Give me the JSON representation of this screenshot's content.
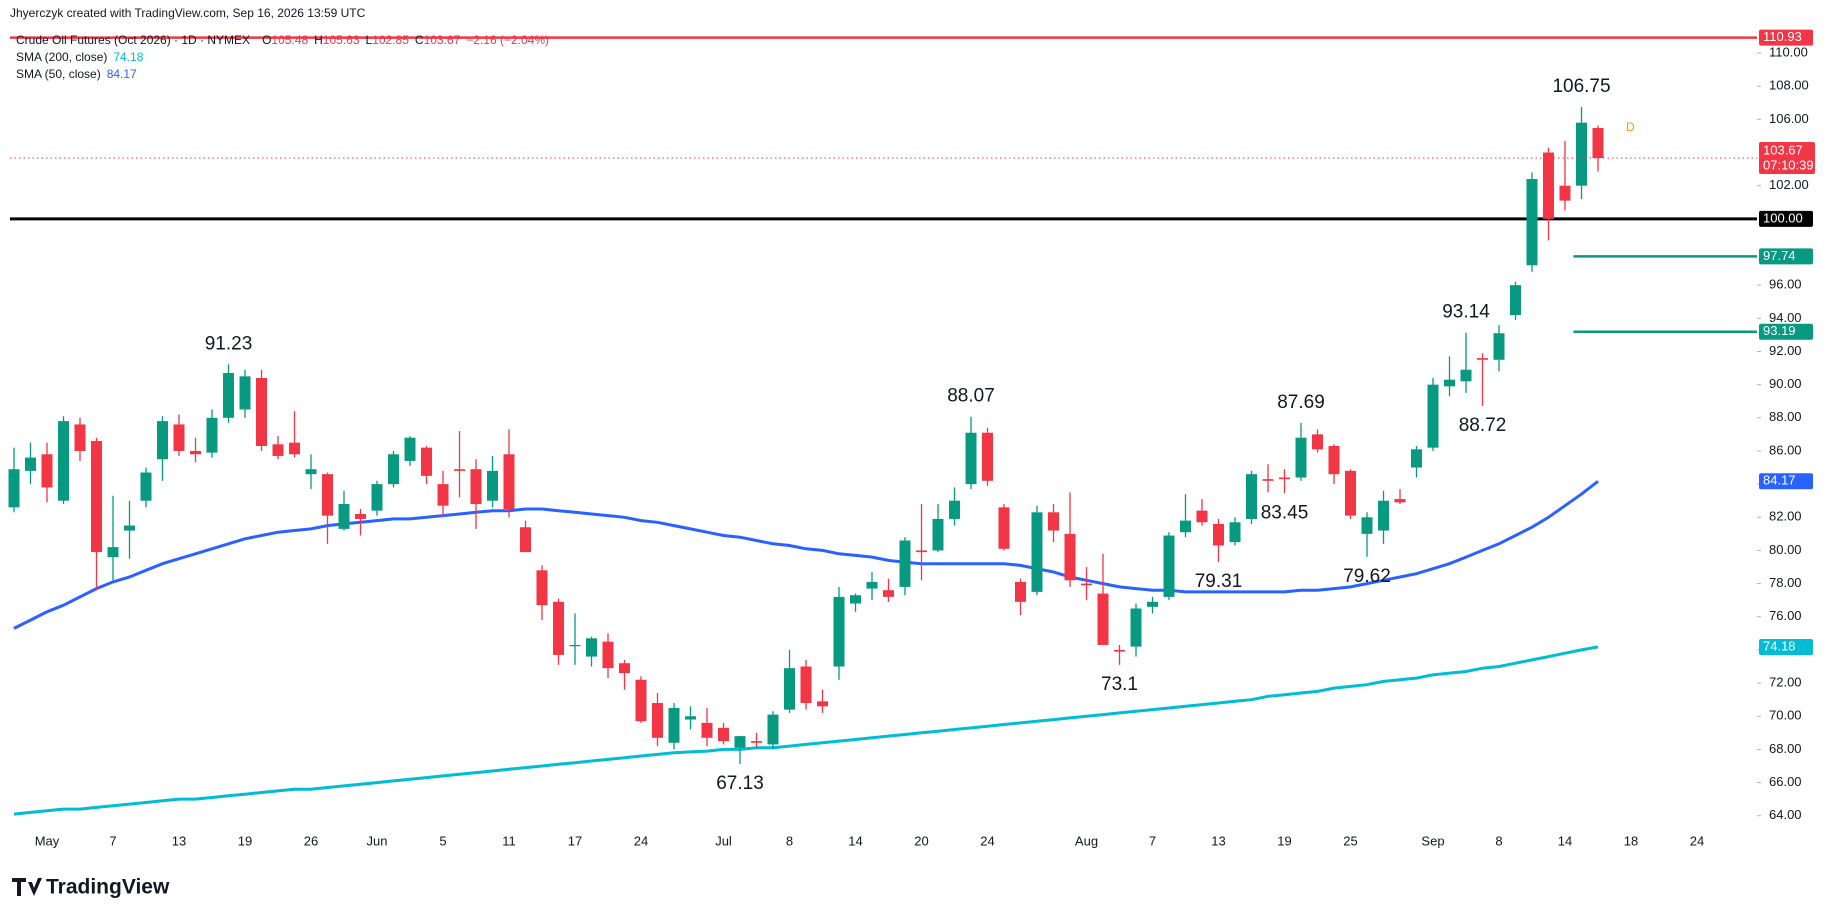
{
  "header": "Jhyerczyk created with TradingView.com, Sep 16, 2026 13:59 UTC",
  "chart_data": {
    "type": "candlestick",
    "symbol": "Crude Oil Futures (Oct 2026) · 1D · NYMEX",
    "ohlc_letters": [
      "O",
      "H",
      "L",
      "C"
    ],
    "change": "−2.16 (−2.04%)",
    "categories": [
      null,
      null,
      "May",
      null,
      null,
      null,
      "7",
      null,
      null,
      null,
      "13",
      null,
      null,
      null,
      "19",
      null,
      null,
      null,
      "26",
      null,
      null,
      null,
      "Jun",
      null,
      null,
      null,
      "5",
      null,
      null,
      null,
      "11",
      null,
      null,
      null,
      "17",
      null,
      null,
      null,
      "24",
      null,
      null,
      null,
      null,
      "Jul",
      null,
      null,
      null,
      "8",
      null,
      null,
      null,
      "14",
      null,
      null,
      null,
      "20",
      null,
      null,
      null,
      "24",
      null,
      null,
      null,
      null,
      null,
      "Aug",
      null,
      null,
      null,
      "7",
      null,
      null,
      null,
      "13",
      null,
      null,
      null,
      "19",
      null,
      null,
      null,
      "25",
      null,
      null,
      null,
      null,
      "Sep",
      null,
      null,
      null,
      "8",
      null,
      null,
      null,
      "14",
      null,
      null,
      null,
      "18",
      null,
      null,
      null,
      "24"
    ],
    "open": [
      82.6,
      84.8,
      85.8,
      83.0,
      87.6,
      86.6,
      79.6,
      81.2,
      83.0,
      85.5,
      87.6,
      86.0,
      85.9,
      88.0,
      88.5,
      90.4,
      86.4,
      86.5,
      84.6,
      84.6,
      81.3,
      82.2,
      82.4,
      84.0,
      85.4,
      86.2,
      84.0,
      84.9,
      84.9,
      83.0,
      85.8,
      81.4,
      78.8,
      76.9,
      74.3,
      73.6,
      74.5,
      73.2,
      72.2,
      70.8,
      68.4,
      69.8,
      69.6,
      69.3,
      68.1,
      68.5,
      68.3,
      70.4,
      73.0,
      70.9,
      73.0,
      76.8,
      77.7,
      77.6,
      77.8,
      80.0,
      80.0,
      81.9,
      84.0,
      87.1,
      82.6,
      78.1,
      77.5,
      82.3,
      81.0,
      78.0,
      77.4,
      74.0,
      74.2,
      76.6,
      77.2,
      81.1,
      82.4,
      81.6,
      80.5,
      81.9,
      84.3,
      84.4,
      84.4,
      87.0,
      86.3,
      84.8,
      81.0,
      81.2,
      83.1,
      85.0,
      86.2,
      89.9,
      90.2,
      91.6,
      91.5,
      94.2,
      97.2,
      104.0,
      102.0,
      102.0,
      105.48,
      null,
      null,
      null,
      null,
      null,
      null
    ],
    "high": [
      86.2,
      86.5,
      86.5,
      88.1,
      88.0,
      86.8,
      83.3,
      83.0,
      85.0,
      88.1,
      88.2,
      86.8,
      88.5,
      91.23,
      90.9,
      90.9,
      86.9,
      88.4,
      85.8,
      84.7,
      83.6,
      82.5,
      84.2,
      86.0,
      86.9,
      86.3,
      84.8,
      87.2,
      85.5,
      85.7,
      87.3,
      81.8,
      79.1,
      77.1,
      76.2,
      74.8,
      75.0,
      73.4,
      72.4,
      71.4,
      70.8,
      70.6,
      70.5,
      69.6,
      68.8,
      69.0,
      70.3,
      74.0,
      73.4,
      71.6,
      77.8,
      77.4,
      78.7,
      78.3,
      80.8,
      82.8,
      82.8,
      83.8,
      88.07,
      87.4,
      82.8,
      78.3,
      82.7,
      82.8,
      83.5,
      79.0,
      79.8,
      74.3,
      76.8,
      77.2,
      81.1,
      83.4,
      83.1,
      81.9,
      82.0,
      84.8,
      85.2,
      84.9,
      87.69,
      87.3,
      86.4,
      84.9,
      82.3,
      83.6,
      83.7,
      86.3,
      90.4,
      91.7,
      93.14,
      91.9,
      93.6,
      96.2,
      102.8,
      104.3,
      104.7,
      106.75,
      105.63,
      null,
      null,
      null,
      null,
      null,
      null
    ],
    "low": [
      82.3,
      84.0,
      82.9,
      82.8,
      85.4,
      77.6,
      78.2,
      79.5,
      82.6,
      84.2,
      85.7,
      85.3,
      85.6,
      87.7,
      88.0,
      86.0,
      85.5,
      85.6,
      83.7,
      80.4,
      81.2,
      80.9,
      82.1,
      83.8,
      85.1,
      84.0,
      82.0,
      83.2,
      81.3,
      82.6,
      82.0,
      79.9,
      75.8,
      73.1,
      73.1,
      73.0,
      72.3,
      71.6,
      69.6,
      68.2,
      68.0,
      69.2,
      68.2,
      68.3,
      67.13,
      68.1,
      68.0,
      70.2,
      70.4,
      70.2,
      72.2,
      76.3,
      77.0,
      76.9,
      77.3,
      78.2,
      79.9,
      81.5,
      83.7,
      83.9,
      80.0,
      76.1,
      77.3,
      80.5,
      77.8,
      77.0,
      74.3,
      73.1,
      73.6,
      76.2,
      77.0,
      80.8,
      81.5,
      79.31,
      80.3,
      81.6,
      83.5,
      83.45,
      84.2,
      85.9,
      84.0,
      81.9,
      79.62,
      80.4,
      82.8,
      84.4,
      86.0,
      89.3,
      89.5,
      88.72,
      90.8,
      93.9,
      96.8,
      98.7,
      100.5,
      101.2,
      102.85,
      null,
      null,
      null,
      null,
      null,
      null
    ],
    "close": [
      84.9,
      85.6,
      83.8,
      87.8,
      86.0,
      79.9,
      80.2,
      81.5,
      84.7,
      87.8,
      86.0,
      85.8,
      88.0,
      90.7,
      90.5,
      86.3,
      85.7,
      85.8,
      84.9,
      82.1,
      82.8,
      81.9,
      84.0,
      85.8,
      86.8,
      84.5,
      82.7,
      84.8,
      82.8,
      84.8,
      82.5,
      79.9,
      76.7,
      73.7,
      74.3,
      74.7,
      72.9,
      72.6,
      69.7,
      68.7,
      70.5,
      70.0,
      68.7,
      68.5,
      68.8,
      68.4,
      70.1,
      72.9,
      70.8,
      70.6,
      77.2,
      77.3,
      78.1,
      77.2,
      80.6,
      79.9,
      81.9,
      83.0,
      87.1,
      84.2,
      80.1,
      76.9,
      82.3,
      81.2,
      78.2,
      77.9,
      74.3,
      73.9,
      76.5,
      76.9,
      80.9,
      81.8,
      81.7,
      80.3,
      81.7,
      84.6,
      84.2,
      84.3,
      86.8,
      86.1,
      84.6,
      82.1,
      82.0,
      83.0,
      82.9,
      86.1,
      90.0,
      90.3,
      90.9,
      91.5,
      93.1,
      96.0,
      102.4,
      100.0,
      101.1,
      105.8,
      103.67,
      null,
      null,
      null,
      null,
      null,
      null
    ],
    "up_color": "#089981",
    "down_color": "#f23645",
    "series": [
      {
        "name": "SMA (200, close)",
        "color": "#00bcd4",
        "values": [
          64.1,
          64.2,
          64.3,
          64.4,
          64.4,
          64.5,
          64.6,
          64.7,
          64.8,
          64.9,
          65.0,
          65.0,
          65.1,
          65.2,
          65.3,
          65.4,
          65.5,
          65.6,
          65.6,
          65.7,
          65.8,
          65.9,
          66.0,
          66.1,
          66.2,
          66.3,
          66.4,
          66.5,
          66.6,
          66.7,
          66.8,
          66.9,
          67.0,
          67.1,
          67.2,
          67.3,
          67.4,
          67.5,
          67.6,
          67.7,
          67.8,
          67.85,
          67.9,
          68.0,
          68.0,
          68.1,
          68.1,
          68.2,
          68.3,
          68.4,
          68.5,
          68.6,
          68.7,
          68.8,
          68.9,
          69.0,
          69.1,
          69.2,
          69.3,
          69.4,
          69.5,
          69.6,
          69.7,
          69.8,
          69.9,
          70.0,
          70.1,
          70.2,
          70.3,
          70.4,
          70.5,
          70.6,
          70.7,
          70.8,
          70.9,
          71.0,
          71.2,
          71.3,
          71.4,
          71.5,
          71.7,
          71.8,
          71.9,
          72.1,
          72.2,
          72.3,
          72.5,
          72.6,
          72.7,
          72.9,
          73.0,
          73.2,
          73.4,
          73.6,
          73.8,
          74.0,
          74.18,
          null,
          null,
          null,
          null,
          null,
          null
        ]
      },
      {
        "name": "SMA (50, close)",
        "color": "#2962ff",
        "values": [
          75.3,
          75.8,
          76.3,
          76.7,
          77.2,
          77.7,
          78.1,
          78.4,
          78.8,
          79.2,
          79.5,
          79.8,
          80.1,
          80.4,
          80.7,
          80.9,
          81.1,
          81.2,
          81.3,
          81.5,
          81.6,
          81.7,
          81.8,
          81.9,
          81.9,
          82.0,
          82.1,
          82.2,
          82.3,
          82.4,
          82.4,
          82.5,
          82.5,
          82.4,
          82.3,
          82.2,
          82.1,
          82.0,
          81.8,
          81.7,
          81.5,
          81.3,
          81.1,
          80.9,
          80.8,
          80.6,
          80.4,
          80.3,
          80.1,
          80.0,
          79.8,
          79.7,
          79.6,
          79.4,
          79.3,
          79.2,
          79.2,
          79.2,
          79.2,
          79.2,
          79.2,
          79.1,
          78.9,
          78.7,
          78.4,
          78.2,
          78.0,
          77.8,
          77.7,
          77.6,
          77.6,
          77.5,
          77.5,
          77.5,
          77.5,
          77.5,
          77.5,
          77.5,
          77.6,
          77.6,
          77.7,
          77.8,
          78.0,
          78.2,
          78.4,
          78.6,
          78.9,
          79.2,
          79.6,
          80.0,
          80.4,
          80.9,
          81.4,
          82.0,
          82.7,
          83.4,
          84.17,
          null,
          null,
          null,
          null,
          null,
          null
        ]
      }
    ],
    "levels": [
      {
        "value": 110.93,
        "color": "#f23645"
      },
      {
        "value": 100,
        "label": "100.00",
        "color": "#000000"
      },
      {
        "value": 97.74,
        "color": "#089981"
      },
      {
        "value": 93.19,
        "color": "#089981"
      }
    ],
    "countdown": "07:10:39",
    "marker": "D",
    "ylim": [
      63.32,
      111.39
    ],
    "yticks": [
      {
        "value": 64,
        "label": "64.00"
      },
      {
        "value": 66,
        "label": "66.00"
      },
      {
        "value": 68,
        "label": "68.00"
      },
      {
        "value": 70,
        "label": "70.00"
      },
      {
        "value": 72,
        "label": "72.00"
      },
      {
        "value": 74,
        "label": "74.00"
      },
      {
        "value": 76,
        "label": "76.00"
      },
      {
        "value": 78,
        "label": "78.00"
      },
      {
        "value": 80,
        "label": "80.00"
      },
      {
        "value": 82,
        "label": "82.00"
      },
      {
        "value": 84,
        "label": "84.00"
      },
      {
        "value": 86,
        "label": "86.00"
      },
      {
        "value": 88,
        "label": "88.00"
      },
      {
        "value": 90,
        "label": "90.00"
      },
      {
        "value": 92,
        "label": "92.00"
      },
      {
        "value": 94,
        "label": "94.00"
      },
      {
        "value": 96,
        "label": "96.00"
      },
      {
        "value": 102,
        "label": "102.00"
      },
      {
        "value": 106,
        "label": "106.00"
      },
      {
        "value": 108,
        "label": "108.00"
      },
      {
        "value": 110,
        "label": "110.00"
      }
    ],
    "grid": false,
    "logo": "TradingView"
  }
}
